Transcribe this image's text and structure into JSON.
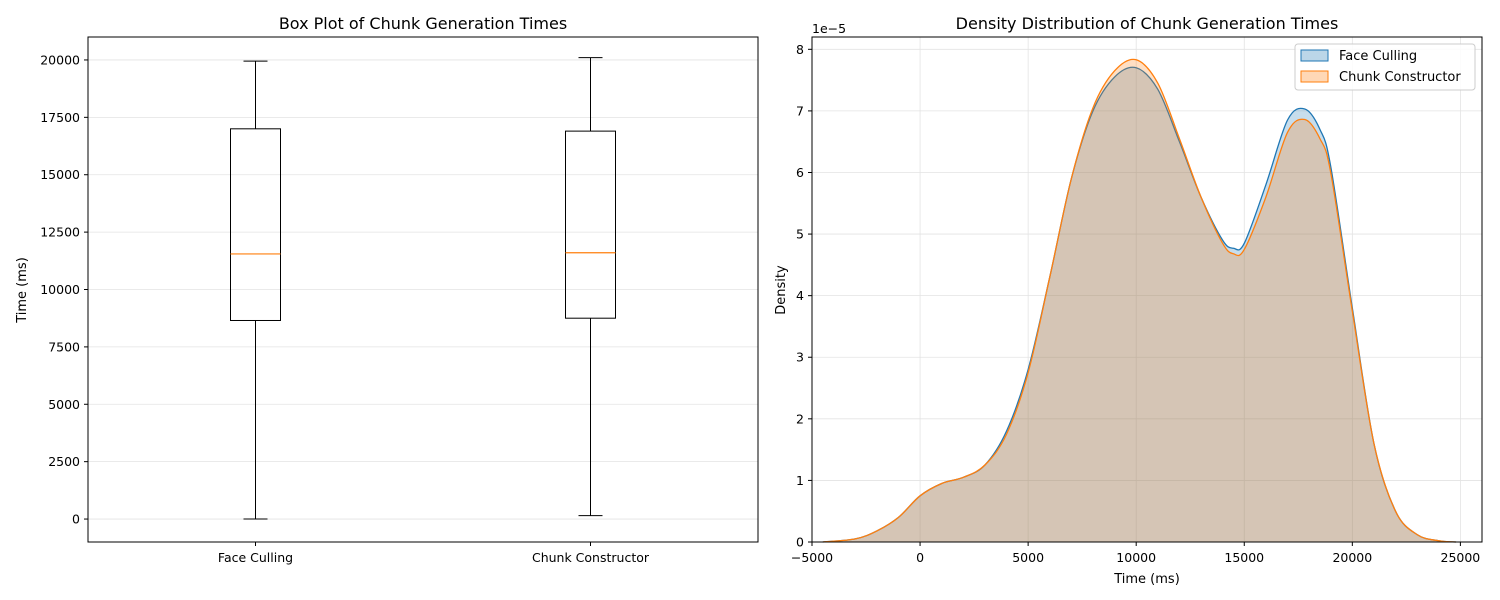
{
  "chart_data": [
    {
      "type": "box",
      "title": "Box Plot of Chunk Generation Times",
      "xlabel": "",
      "ylabel": "Time (ms)",
      "ylim": [
        -1000,
        21000
      ],
      "yticks": [
        0,
        2500,
        5000,
        7500,
        10000,
        12500,
        15000,
        17500,
        20000
      ],
      "grid": true,
      "categories": [
        "Face Culling",
        "Chunk Constructor"
      ],
      "boxes": [
        {
          "name": "Face Culling",
          "whisker_low": 0,
          "q1": 8650,
          "median": 11550,
          "q3": 17000,
          "whisker_high": 19950
        },
        {
          "name": "Chunk Constructor",
          "whisker_low": 150,
          "q1": 8750,
          "median": 11600,
          "q3": 16900,
          "whisker_high": 20100
        }
      ]
    },
    {
      "type": "area",
      "title": "Density Distribution of Chunk Generation Times",
      "xlabel": "Time (ms)",
      "ylabel": "Density",
      "offset_label": "1e−5",
      "xlim": [
        -5000,
        26000
      ],
      "ylim": [
        0,
        8.2
      ],
      "xticks": [
        -5000,
        0,
        5000,
        10000,
        15000,
        20000,
        25000
      ],
      "yticks": [
        0,
        1,
        2,
        3,
        4,
        5,
        6,
        7,
        8
      ],
      "grid": true,
      "legend": "top-right",
      "x": [
        -4500,
        -3000,
        -2000,
        -1000,
        0,
        1000,
        2000,
        3000,
        4000,
        5000,
        6000,
        7000,
        8000,
        9000,
        10000,
        11000,
        12000,
        13000,
        14000,
        14500,
        15000,
        16000,
        17000,
        17800,
        18500,
        19000,
        20000,
        21000,
        22000,
        23000,
        24000,
        24800
      ],
      "series": [
        {
          "name": "Face Culling",
          "color": "#1f77b4",
          "values": [
            0,
            0.05,
            0.18,
            0.4,
            0.75,
            0.95,
            1.05,
            1.25,
            1.8,
            2.8,
            4.3,
            5.9,
            7.0,
            7.55,
            7.7,
            7.35,
            6.5,
            5.6,
            4.9,
            4.77,
            4.85,
            5.8,
            6.85,
            7.03,
            6.7,
            6.1,
            3.8,
            1.6,
            0.5,
            0.12,
            0.02,
            0
          ]
        },
        {
          "name": "Chunk Constructor",
          "color": "#ff7f0e",
          "values": [
            0,
            0.05,
            0.18,
            0.4,
            0.75,
            0.95,
            1.05,
            1.25,
            1.75,
            2.75,
            4.3,
            5.9,
            7.05,
            7.65,
            7.83,
            7.45,
            6.55,
            5.6,
            4.85,
            4.68,
            4.75,
            5.6,
            6.65,
            6.86,
            6.55,
            6.0,
            3.75,
            1.6,
            0.5,
            0.12,
            0.02,
            0
          ]
        }
      ]
    }
  ]
}
